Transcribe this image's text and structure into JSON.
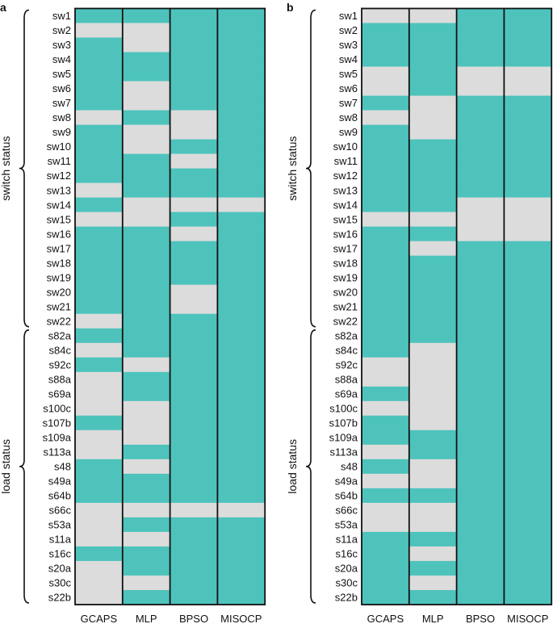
{
  "colors": {
    "on": "#4EC3BC",
    "off": "#DCDCDC",
    "border": "#111111",
    "gcaps": "#2E8B57",
    "text": "#111111"
  },
  "chart_data": [
    {
      "type": "heatmap",
      "panel_label": "a",
      "methods": [
        "GCAPS",
        "MLP",
        "BPSO",
        "MISOCP"
      ],
      "rows": [
        "sw1",
        "sw2",
        "sw3",
        "sw4",
        "sw5",
        "sw6",
        "sw7",
        "sw8",
        "sw9",
        "sw10",
        "sw11",
        "sw12",
        "sw13",
        "sw14",
        "sw15",
        "sw16",
        "sw17",
        "sw18",
        "sw19",
        "sw20",
        "sw21",
        "sw22",
        "s82a",
        "s84c",
        "s92c",
        "s88a",
        "s69a",
        "s100c",
        "s107b",
        "s109a",
        "s113a",
        "s48",
        "s49a",
        "s64b",
        "s66c",
        "s53a",
        "s11a",
        "s16c",
        "s20a",
        "s30c",
        "s22b"
      ],
      "groups": [
        {
          "label": "switch status",
          "start": 0,
          "end": 21
        },
        {
          "label": "load status",
          "start": 22,
          "end": 40
        }
      ],
      "status": [
        [
          1,
          0,
          1,
          1,
          1,
          1,
          1,
          0,
          1,
          1,
          1,
          1,
          0,
          1,
          0,
          1,
          1,
          1,
          1,
          1,
          1,
          0,
          1,
          0,
          1,
          0,
          0,
          0,
          1,
          0,
          0,
          1,
          1,
          1,
          0,
          0,
          0,
          1,
          0,
          0,
          0
        ],
        [
          1,
          0,
          0,
          1,
          1,
          0,
          0,
          1,
          0,
          0,
          1,
          1,
          1,
          0,
          0,
          1,
          1,
          1,
          1,
          1,
          1,
          1,
          1,
          1,
          0,
          1,
          1,
          0,
          0,
          0,
          1,
          0,
          1,
          1,
          0,
          1,
          0,
          1,
          1,
          0,
          1
        ],
        [
          1,
          1,
          1,
          1,
          1,
          1,
          1,
          0,
          0,
          1,
          0,
          1,
          1,
          0,
          1,
          0,
          1,
          1,
          1,
          0,
          0,
          1,
          1,
          1,
          1,
          1,
          1,
          1,
          1,
          1,
          1,
          1,
          1,
          1,
          0,
          1,
          1,
          1,
          1,
          1,
          1
        ],
        [
          1,
          1,
          1,
          1,
          1,
          1,
          1,
          1,
          1,
          1,
          1,
          1,
          1,
          0,
          1,
          1,
          1,
          1,
          1,
          1,
          1,
          1,
          1,
          1,
          1,
          1,
          1,
          1,
          1,
          1,
          1,
          1,
          1,
          1,
          0,
          1,
          1,
          1,
          1,
          1,
          1
        ]
      ]
    },
    {
      "type": "heatmap",
      "panel_label": "b",
      "methods": [
        "GCAPS",
        "MLP",
        "BPSO",
        "MISOCP"
      ],
      "rows": [
        "sw1",
        "sw2",
        "sw3",
        "sw4",
        "sw5",
        "sw6",
        "sw7",
        "sw8",
        "sw9",
        "sw10",
        "sw11",
        "sw12",
        "sw13",
        "sw14",
        "sw15",
        "sw16",
        "sw17",
        "sw18",
        "sw19",
        "sw20",
        "sw21",
        "sw22",
        "s82a",
        "s84c",
        "s92c",
        "s88a",
        "s69a",
        "s100c",
        "s107b",
        "s109a",
        "s113a",
        "s48",
        "s49a",
        "s64b",
        "s66c",
        "s53a",
        "s11a",
        "s16c",
        "s20a",
        "s30c",
        "s22b"
      ],
      "groups": [
        {
          "label": "switch status",
          "start": 0,
          "end": 21
        },
        {
          "label": "load status",
          "start": 22,
          "end": 40
        }
      ],
      "status": [
        [
          0,
          1,
          1,
          1,
          0,
          0,
          1,
          0,
          1,
          1,
          1,
          1,
          1,
          1,
          0,
          1,
          1,
          1,
          1,
          1,
          1,
          1,
          1,
          1,
          0,
          0,
          1,
          0,
          1,
          1,
          0,
          1,
          0,
          1,
          0,
          0,
          1,
          1,
          1,
          1,
          1
        ],
        [
          0,
          1,
          1,
          1,
          1,
          1,
          0,
          0,
          0,
          1,
          1,
          1,
          1,
          1,
          0,
          1,
          0,
          1,
          1,
          1,
          1,
          1,
          1,
          0,
          0,
          0,
          0,
          0,
          0,
          1,
          1,
          0,
          0,
          1,
          0,
          0,
          1,
          0,
          1,
          0,
          1
        ],
        [
          1,
          1,
          1,
          1,
          0,
          0,
          1,
          1,
          1,
          1,
          1,
          1,
          1,
          0,
          0,
          0,
          1,
          1,
          1,
          1,
          1,
          1,
          1,
          1,
          1,
          1,
          1,
          1,
          1,
          1,
          1,
          1,
          1,
          1,
          1,
          1,
          1,
          1,
          1,
          1,
          1
        ],
        [
          1,
          1,
          1,
          1,
          0,
          0,
          1,
          1,
          1,
          1,
          1,
          1,
          1,
          0,
          0,
          0,
          1,
          1,
          1,
          1,
          1,
          1,
          1,
          1,
          1,
          1,
          1,
          1,
          1,
          1,
          1,
          1,
          1,
          1,
          1,
          1,
          1,
          1,
          1,
          1,
          1
        ]
      ]
    }
  ]
}
